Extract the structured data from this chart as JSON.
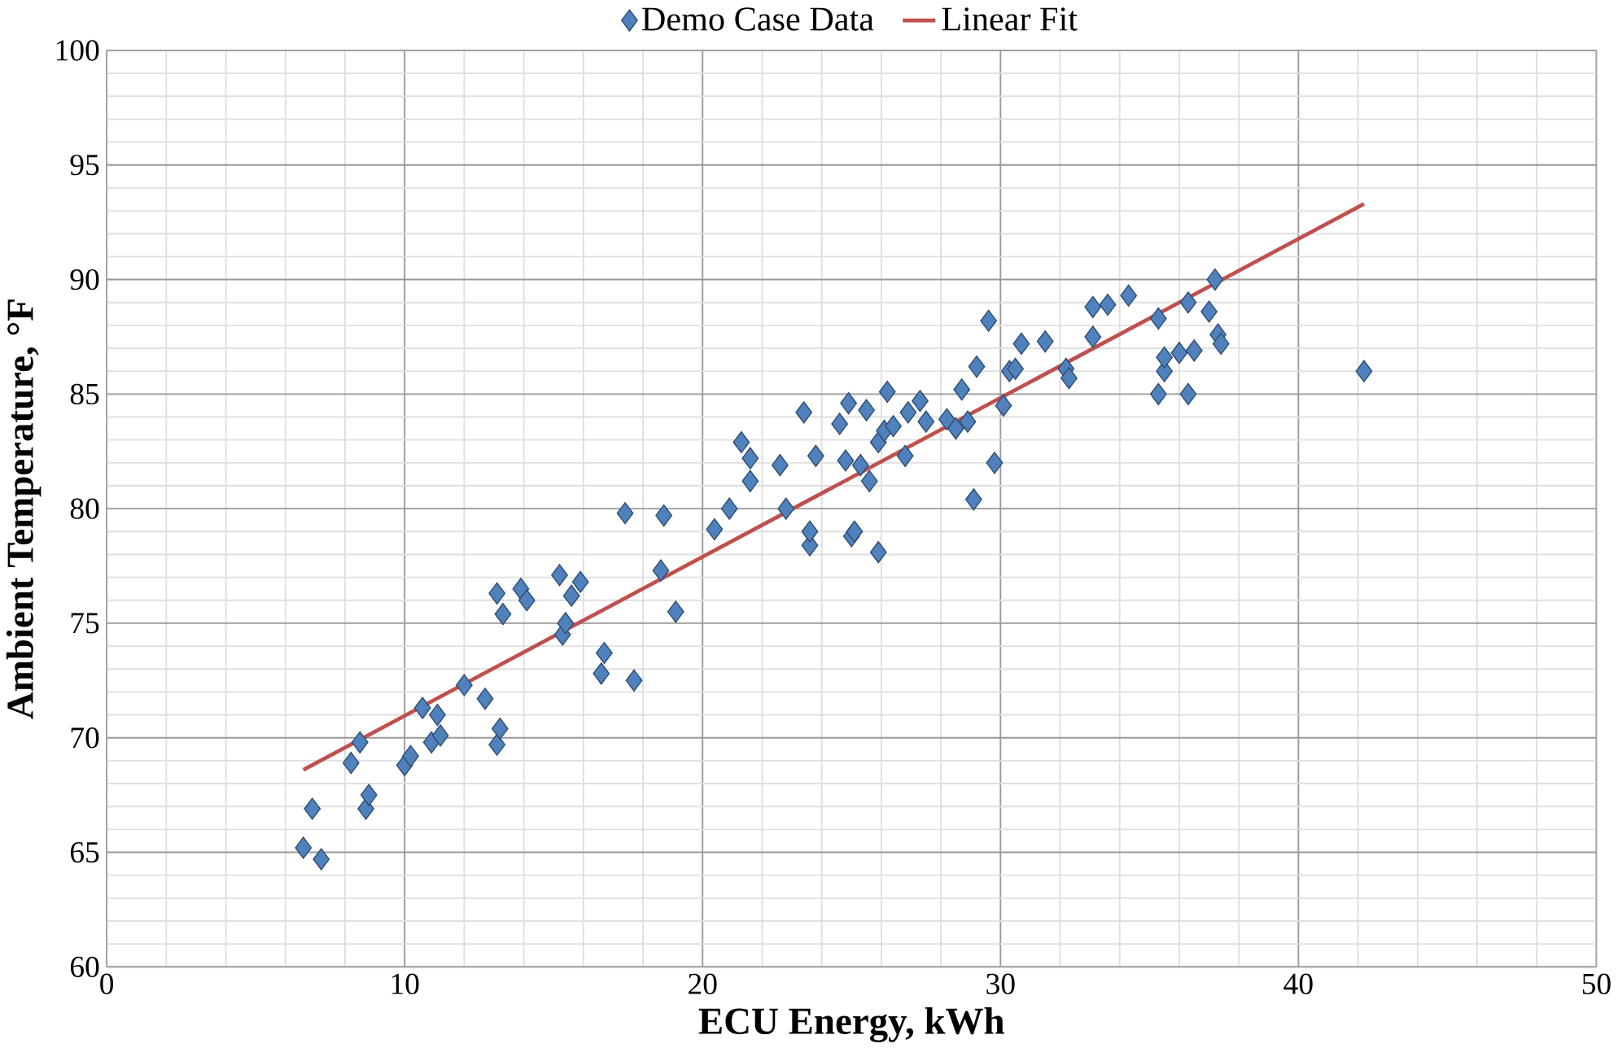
{
  "chart_data": {
    "type": "scatter",
    "xlabel": "ECU Energy, kWh",
    "ylabel": "Ambient Temperature, °F",
    "xlim": [
      0,
      50
    ],
    "ylim": [
      60,
      100
    ],
    "xticks": [
      0,
      10,
      20,
      30,
      40,
      50
    ],
    "yticks": [
      60,
      65,
      70,
      75,
      80,
      85,
      90,
      95,
      100
    ],
    "grid": true,
    "legend": "top",
    "marker": "diamond",
    "series": [
      {
        "name": "Demo Case Data",
        "color": "#4f81bd",
        "x": [
          6.6,
          6.9,
          7.2,
          8.2,
          8.5,
          8.7,
          8.8,
          10.0,
          10.2,
          10.6,
          10.9,
          11.1,
          11.2,
          12.0,
          12.7,
          13.1,
          13.2,
          13.1,
          13.3,
          13.9,
          14.1,
          15.2,
          15.3,
          15.4,
          15.6,
          15.9,
          16.6,
          16.7,
          17.4,
          17.7,
          18.6,
          18.7,
          19.1,
          20.4,
          20.9,
          21.3,
          21.6,
          21.6,
          22.6,
          22.8,
          23.4,
          23.6,
          23.6,
          23.8,
          24.6,
          24.8,
          24.9,
          25.0,
          25.1,
          25.3,
          25.5,
          25.6,
          25.9,
          25.9,
          26.1,
          26.2,
          26.4,
          26.8,
          26.9,
          27.3,
          27.5,
          28.2,
          28.5,
          28.7,
          28.9,
          29.1,
          29.2,
          29.6,
          29.8,
          30.1,
          30.3,
          30.5,
          30.7,
          31.5,
          32.2,
          32.3,
          33.1,
          33.1,
          33.6,
          34.3,
          35.3,
          35.3,
          35.5,
          35.5,
          36.0,
          36.3,
          36.3,
          36.5,
          37.0,
          37.2,
          37.3,
          37.4,
          42.2
        ],
        "values": [
          65.2,
          66.9,
          64.7,
          68.9,
          69.8,
          66.9,
          67.5,
          68.8,
          69.2,
          71.3,
          69.8,
          71.0,
          70.1,
          72.3,
          71.7,
          69.7,
          70.4,
          76.3,
          75.4,
          76.5,
          76.0,
          77.1,
          74.5,
          75.0,
          76.2,
          76.8,
          72.8,
          73.7,
          79.8,
          72.5,
          77.3,
          79.7,
          75.5,
          79.1,
          80.0,
          82.9,
          82.2,
          81.2,
          81.9,
          80.0,
          84.2,
          78.4,
          79.0,
          82.3,
          83.7,
          82.1,
          84.6,
          78.8,
          79.0,
          81.9,
          84.3,
          81.2,
          78.1,
          82.9,
          83.4,
          85.1,
          83.6,
          82.3,
          84.2,
          84.7,
          83.8,
          83.9,
          83.5,
          85.2,
          83.8,
          80.4,
          86.2,
          88.2,
          82.0,
          84.5,
          86.0,
          86.1,
          87.2,
          87.3,
          86.1,
          85.7,
          87.5,
          88.8,
          88.9,
          89.3,
          88.3,
          85.0,
          86.0,
          86.6,
          86.8,
          89.0,
          85.0,
          86.9,
          88.6,
          90.0,
          87.6,
          87.2,
          86.0
        ]
      },
      {
        "name": "Linear Fit",
        "color": "#c0504d",
        "type": "line",
        "marker": "none",
        "line_style": "solid",
        "x": [
          6.6,
          42.2
        ],
        "values": [
          68.6,
          93.3
        ]
      }
    ]
  }
}
